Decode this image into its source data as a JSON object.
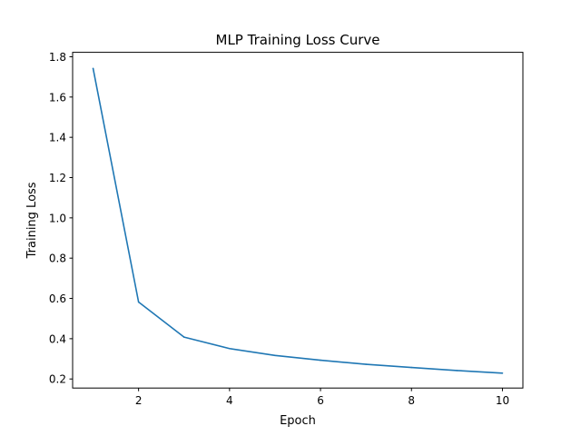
{
  "chart_data": {
    "type": "line",
    "title": "MLP Training Loss Curve",
    "xlabel": "Epoch",
    "ylabel": "Training Loss",
    "xlim": [
      0.55,
      10.45
    ],
    "ylim": [
      0.155,
      1.822
    ],
    "xticks": [
      2,
      4,
      6,
      8,
      10
    ],
    "yticks": [
      0.2,
      0.4,
      0.6,
      0.8,
      1.0,
      1.2,
      1.4,
      1.6,
      1.8
    ],
    "ytick_labels": [
      "0.2",
      "0.4",
      "0.6",
      "0.8",
      "1.0",
      "1.2",
      "1.4",
      "1.6",
      "1.8"
    ],
    "grid": false,
    "series": [
      {
        "color": "#1f77b4",
        "x": [
          1,
          2,
          3,
          4,
          5,
          6,
          7,
          8,
          9,
          10
        ],
        "y": [
          1.742,
          0.582,
          0.408,
          0.351,
          0.317,
          0.293,
          0.273,
          0.257,
          0.242,
          0.229
        ]
      }
    ]
  }
}
